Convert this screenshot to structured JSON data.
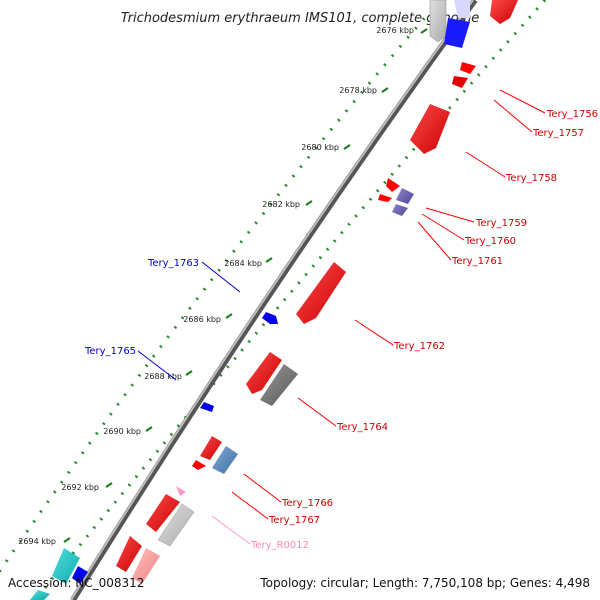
{
  "title": "Trichodesmium erythraeum IMS101, complete genome",
  "accession": "Accession: NC_008312",
  "topology": "Topology: circular; Length: 7,750,108 bp; Genes: 4,498",
  "ticks": [
    "2676 kbp",
    "2678 kbp",
    "2680 kbp",
    "2682 kbp",
    "2684 kbp",
    "2686 kbp",
    "2688 kbp",
    "2690 kbp",
    "2692 kbp",
    "2694 kbp"
  ],
  "genes": {
    "g1756": "Tery_1756",
    "g1757": "Tery_1757",
    "g1758": "Tery_1758",
    "g1759": "Tery_1759",
    "g1760": "Tery_1760",
    "g1761": "Tery_1761",
    "g1762": "Tery_1762",
    "g1763": "Tery_1763",
    "g1764": "Tery_1764",
    "g1765": "Tery_1765",
    "g1766": "Tery_1766",
    "g1767": "Tery_1767",
    "r0012": "Tery_R0012"
  },
  "colors": {
    "forward": "#ff0000",
    "reverse": "#0000ee",
    "rna": "#ff99cc",
    "backbone": "#777777",
    "dots": "#2b8a2b",
    "label_red": "#cc0000",
    "label_blue": "#0000cc",
    "label_pink": "#ff88bb"
  }
}
